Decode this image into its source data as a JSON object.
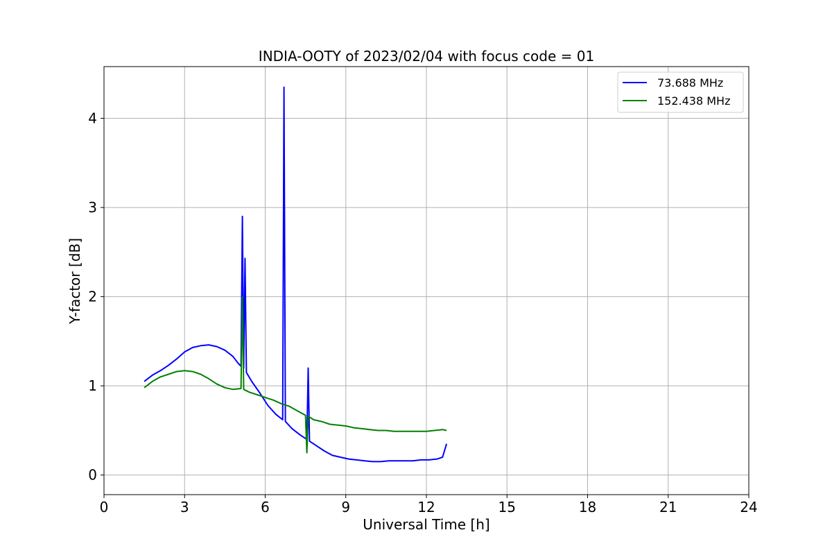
{
  "chart_data": {
    "type": "line",
    "title": "INDIA-OOTY of 2023/02/04 with focus code = 01",
    "xlabel": "Universal Time [h]",
    "ylabel": "Y-factor [dB]",
    "xlim": [
      0,
      24
    ],
    "ylim": [
      -0.22,
      4.58
    ],
    "xticks": [
      "0",
      "3",
      "6",
      "9",
      "12",
      "15",
      "18",
      "21",
      "24"
    ],
    "yticks": [
      "0",
      "1",
      "2",
      "3",
      "4"
    ],
    "grid": true,
    "legend_position": "top-right",
    "series": [
      {
        "name": "  73.688 MHz",
        "color": "#0000ff",
        "x": [
          1.5,
          1.8,
          2.1,
          2.4,
          2.7,
          3.0,
          3.3,
          3.6,
          3.9,
          4.2,
          4.5,
          4.8,
          5.0,
          5.1,
          5.15,
          5.2,
          5.25,
          5.3,
          5.5,
          5.8,
          6.1,
          6.4,
          6.65,
          6.7,
          6.75,
          7.0,
          7.3,
          7.55,
          7.6,
          7.65,
          7.9,
          8.2,
          8.5,
          8.8,
          9.1,
          9.4,
          9.7,
          10.0,
          10.3,
          10.6,
          10.9,
          11.2,
          11.5,
          11.8,
          12.1,
          12.4,
          12.6,
          12.75
        ],
        "y": [
          1.05,
          1.12,
          1.17,
          1.23,
          1.3,
          1.38,
          1.43,
          1.45,
          1.46,
          1.44,
          1.4,
          1.33,
          1.25,
          1.22,
          2.9,
          1.2,
          2.43,
          1.15,
          1.05,
          0.92,
          0.78,
          0.68,
          0.62,
          4.35,
          0.6,
          0.52,
          0.45,
          0.4,
          1.2,
          0.38,
          0.33,
          0.27,
          0.22,
          0.2,
          0.18,
          0.17,
          0.16,
          0.15,
          0.15,
          0.16,
          0.16,
          0.16,
          0.16,
          0.17,
          0.17,
          0.18,
          0.2,
          0.35
        ]
      },
      {
        "name": "152.438 MHz",
        "color": "#008000",
        "x": [
          1.5,
          1.8,
          2.1,
          2.4,
          2.7,
          3.0,
          3.3,
          3.6,
          3.9,
          4.2,
          4.5,
          4.8,
          5.1,
          5.15,
          5.2,
          5.4,
          5.7,
          6.0,
          6.3,
          6.6,
          6.9,
          7.2,
          7.5,
          7.55,
          7.6,
          7.8,
          8.1,
          8.4,
          8.7,
          9.0,
          9.3,
          9.6,
          9.9,
          10.2,
          10.5,
          10.8,
          11.1,
          11.4,
          11.7,
          12.0,
          12.3,
          12.6,
          12.75
        ],
        "y": [
          0.98,
          1.05,
          1.1,
          1.13,
          1.16,
          1.17,
          1.16,
          1.13,
          1.08,
          1.02,
          0.98,
          0.96,
          0.97,
          2.0,
          0.96,
          0.93,
          0.9,
          0.87,
          0.84,
          0.8,
          0.77,
          0.72,
          0.67,
          0.25,
          0.66,
          0.62,
          0.6,
          0.57,
          0.56,
          0.55,
          0.53,
          0.52,
          0.51,
          0.5,
          0.5,
          0.49,
          0.49,
          0.49,
          0.49,
          0.49,
          0.5,
          0.51,
          0.5
        ]
      }
    ]
  }
}
